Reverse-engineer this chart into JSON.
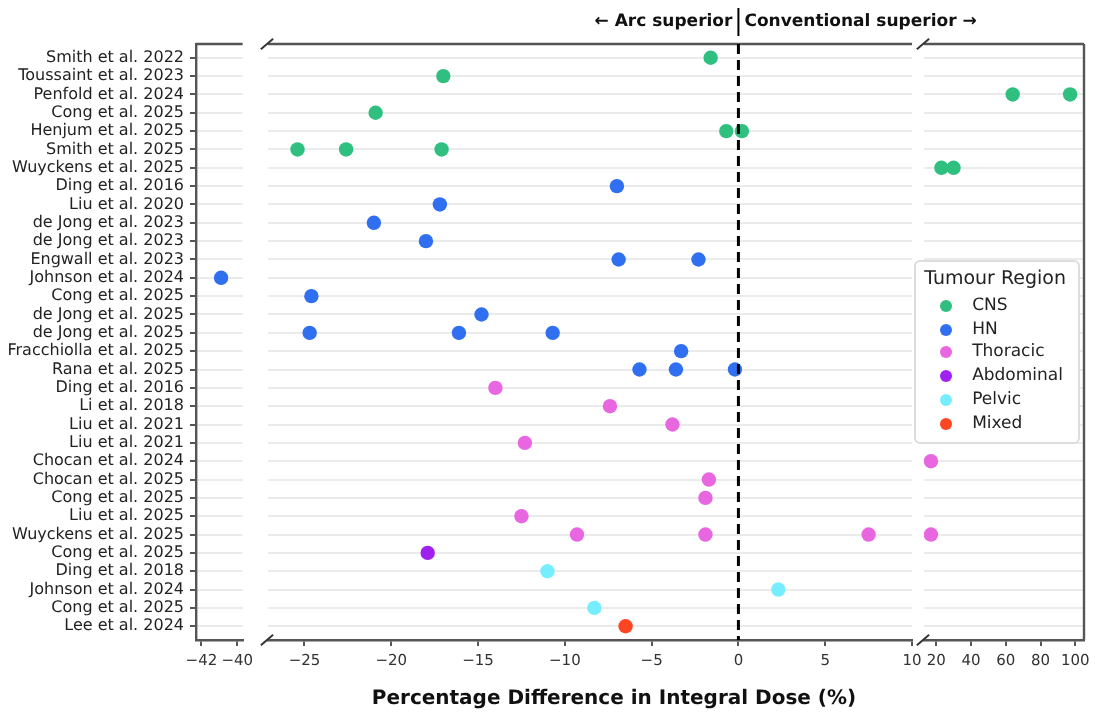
{
  "chart_data": [
    {
      "type": "scatter",
      "categories": [
        "Smith et al. 2022",
        "Toussaint et al. 2023",
        "Penfold et al. 2024",
        "Cong et al. 2025",
        "Henjum et al. 2025",
        "Smith et al. 2025",
        "Wuyckens et al. 2025",
        "Ding et al. 2016",
        "Liu et al. 2020",
        "de Jong et al. 2023",
        "de Jong et al. 2023",
        "Engwall et al. 2023",
        "Johnson et al. 2024",
        "Cong et al. 2025",
        "de Jong et al. 2025",
        "de Jong et al. 2025",
        "Fracchiolla et al. 2025",
        "Rana et al. 2025",
        "Ding et al. 2016",
        "Li et al. 2018",
        "Liu et al. 2021",
        "Liu et al. 2021",
        "Chocan et al. 2024",
        "Chocan et al. 2025",
        "Cong et al. 2025",
        "Liu et al. 2025",
        "Wuyckens et al. 2025",
        "Cong et al. 2025",
        "Ding et al. 2018",
        "Johnson et al. 2024",
        "Cong et al. 2025",
        "Lee et al. 2024"
      ],
      "orientation": "horizontal",
      "xlim": [
        -42.3,
        -39.7
      ],
      "xticks": [
        -42,
        -40
      ],
      "grid": "y",
      "marker": "circle",
      "series": [
        {
          "color": "#3070f0",
          "values": [
            null,
            null,
            null,
            null,
            null,
            null,
            null,
            null,
            null,
            null,
            null,
            null,
            -40.9,
            null,
            null,
            null,
            null,
            null,
            null,
            null,
            null,
            null,
            null,
            null,
            null,
            null,
            null,
            null,
            null,
            null,
            null,
            null
          ]
        }
      ]
    },
    {
      "type": "scatter",
      "orientation": "horizontal",
      "xlim": [
        -27.1,
        10
      ],
      "xticks": [
        -25,
        -20,
        -15,
        -10,
        -5,
        0,
        5,
        10
      ],
      "grid": "y",
      "marker": "circle",
      "tick_labels": "x",
      "xlabel": "Percentage Difference in Integral Dose (%)",
      "annotations": [
        "← Arc superior",
        "Conventional superior →"
      ],
      "ref_lines": [
        {
          "axis": "x",
          "value": 0,
          "color": "#000000",
          "line_style": "dashed"
        }
      ],
      "series": [
        {
          "color": "#2fbf7f",
          "values": [
            -1.6,
            -17.0,
            null,
            -20.9,
            -0.7,
            -25.4,
            null,
            null,
            null,
            null,
            null,
            null,
            null,
            null,
            null,
            null,
            null,
            null,
            null,
            null,
            null,
            null,
            null,
            null,
            null,
            null,
            null,
            null,
            null,
            null,
            null,
            null
          ]
        },
        {
          "color": "#2fbf7f",
          "values": [
            null,
            null,
            null,
            null,
            0.2,
            -22.6,
            null,
            null,
            null,
            null,
            null,
            null,
            null,
            null,
            null,
            null,
            null,
            null,
            null,
            null,
            null,
            null,
            null,
            null,
            null,
            null,
            null,
            null,
            null,
            null,
            null,
            null
          ]
        },
        {
          "color": "#2fbf7f",
          "values": [
            null,
            null,
            null,
            null,
            null,
            -17.1,
            null,
            null,
            null,
            null,
            null,
            null,
            null,
            null,
            null,
            null,
            null,
            null,
            null,
            null,
            null,
            null,
            null,
            null,
            null,
            null,
            null,
            null,
            null,
            null,
            null,
            null
          ]
        },
        {
          "color": "#3070f0",
          "values": [
            null,
            null,
            null,
            null,
            null,
            null,
            null,
            -7.0,
            -17.2,
            -21.0,
            -18.0,
            -6.9,
            null,
            -24.6,
            -14.8,
            -24.7,
            -3.3,
            -5.7,
            null,
            null,
            null,
            null,
            null,
            null,
            null,
            null,
            null,
            null,
            null,
            null,
            null,
            null
          ]
        },
        {
          "color": "#3070f0",
          "values": [
            null,
            null,
            null,
            null,
            null,
            null,
            null,
            null,
            null,
            null,
            null,
            -2.3,
            null,
            null,
            null,
            -16.1,
            null,
            -3.6,
            null,
            null,
            null,
            null,
            null,
            null,
            null,
            null,
            null,
            null,
            null,
            null,
            null,
            null
          ]
        },
        {
          "color": "#3070f0",
          "values": [
            null,
            null,
            null,
            null,
            null,
            null,
            null,
            null,
            null,
            null,
            null,
            null,
            null,
            null,
            null,
            -10.7,
            null,
            -0.2,
            null,
            null,
            null,
            null,
            null,
            null,
            null,
            null,
            null,
            null,
            null,
            null,
            null,
            null
          ]
        },
        {
          "color": "#e866e0",
          "values": [
            null,
            null,
            null,
            null,
            null,
            null,
            null,
            null,
            null,
            null,
            null,
            null,
            null,
            null,
            null,
            null,
            null,
            null,
            -14.0,
            -7.4,
            -3.8,
            -12.3,
            null,
            -1.7,
            -1.9,
            -12.5,
            -9.3,
            null,
            null,
            null,
            null,
            null
          ]
        },
        {
          "color": "#e866e0",
          "values": [
            null,
            null,
            null,
            null,
            null,
            null,
            null,
            null,
            null,
            null,
            null,
            null,
            null,
            null,
            null,
            null,
            null,
            null,
            null,
            null,
            null,
            null,
            null,
            null,
            null,
            null,
            -1.9,
            null,
            null,
            null,
            null,
            null
          ]
        },
        {
          "color": "#e866e0",
          "values": [
            null,
            null,
            null,
            null,
            null,
            null,
            null,
            null,
            null,
            null,
            null,
            null,
            null,
            null,
            null,
            null,
            null,
            null,
            null,
            null,
            null,
            null,
            null,
            null,
            null,
            null,
            7.5,
            null,
            null,
            null,
            null,
            null
          ]
        },
        {
          "color": "#a020f0",
          "values": [
            null,
            null,
            null,
            null,
            null,
            null,
            null,
            null,
            null,
            null,
            null,
            null,
            null,
            null,
            null,
            null,
            null,
            null,
            null,
            null,
            null,
            null,
            null,
            null,
            null,
            null,
            null,
            -17.9,
            null,
            null,
            null,
            null
          ]
        },
        {
          "color": "#77eeff",
          "values": [
            null,
            null,
            null,
            null,
            null,
            null,
            null,
            null,
            null,
            null,
            null,
            null,
            null,
            null,
            null,
            null,
            null,
            null,
            null,
            null,
            null,
            null,
            null,
            null,
            null,
            null,
            null,
            null,
            -11.0,
            2.3,
            -8.3,
            null
          ]
        },
        {
          "color": "#ff4422",
          "values": [
            null,
            null,
            null,
            null,
            null,
            null,
            null,
            null,
            null,
            null,
            null,
            null,
            null,
            null,
            null,
            null,
            null,
            null,
            null,
            null,
            null,
            null,
            null,
            null,
            null,
            null,
            null,
            null,
            null,
            null,
            null,
            -6.5
          ]
        }
      ]
    },
    {
      "type": "scatter",
      "orientation": "horizontal",
      "xlim": [
        13,
        105
      ],
      "xticks": [
        20,
        40,
        60,
        80,
        100
      ],
      "grid": "y",
      "marker": "circle",
      "tick_labels": "x",
      "legend": "right",
      "legend_title": "Tumour Region",
      "series": [
        {
          "name": "CNS",
          "color": "#2fbf7f",
          "values": [
            null,
            null,
            64,
            null,
            null,
            null,
            23,
            null,
            null,
            null,
            null,
            null,
            null,
            null,
            null,
            null,
            null,
            null,
            null,
            null,
            null,
            null,
            null,
            null,
            null,
            null,
            null,
            null,
            null,
            null,
            null,
            null
          ]
        },
        {
          "color": "#2fbf7f",
          "values": [
            null,
            null,
            97,
            null,
            null,
            null,
            30,
            null,
            null,
            null,
            null,
            null,
            null,
            null,
            null,
            null,
            null,
            null,
            null,
            null,
            null,
            null,
            null,
            null,
            null,
            null,
            null,
            null,
            null,
            null,
            null,
            null
          ]
        },
        {
          "name": "HN",
          "color": "#3070f0",
          "values": [
            null,
            null,
            null,
            null,
            null,
            null,
            null,
            null,
            null,
            null,
            null,
            null,
            null,
            null,
            null,
            null,
            null,
            null,
            null,
            null,
            null,
            null,
            null,
            null,
            null,
            null,
            null,
            null,
            null,
            null,
            null,
            null
          ]
        },
        {
          "name": "Thoracic",
          "color": "#e866e0",
          "values": [
            null,
            null,
            null,
            null,
            null,
            null,
            null,
            null,
            null,
            null,
            null,
            null,
            null,
            null,
            null,
            null,
            null,
            null,
            null,
            null,
            null,
            null,
            17,
            null,
            null,
            null,
            17,
            null,
            null,
            null,
            null,
            null
          ]
        },
        {
          "name": "Abdominal",
          "color": "#a020f0",
          "values": [
            null,
            null,
            null,
            null,
            null,
            null,
            null,
            null,
            null,
            null,
            null,
            null,
            null,
            null,
            null,
            null,
            null,
            null,
            null,
            null,
            null,
            null,
            null,
            null,
            null,
            null,
            null,
            null,
            null,
            null,
            null,
            null
          ]
        },
        {
          "name": "Pelvic",
          "color": "#77eeff",
          "values": [
            null,
            null,
            null,
            null,
            null,
            null,
            null,
            null,
            null,
            null,
            null,
            null,
            null,
            null,
            null,
            null,
            null,
            null,
            null,
            null,
            null,
            null,
            null,
            null,
            null,
            null,
            null,
            null,
            null,
            null,
            null,
            null
          ]
        },
        {
          "name": "Mixed",
          "color": "#ff4422",
          "values": [
            null,
            null,
            null,
            null,
            null,
            null,
            null,
            null,
            null,
            null,
            null,
            null,
            null,
            null,
            null,
            null,
            null,
            null,
            null,
            null,
            null,
            null,
            null,
            null,
            null,
            null,
            null,
            null,
            null,
            null,
            null,
            null
          ]
        }
      ]
    }
  ]
}
